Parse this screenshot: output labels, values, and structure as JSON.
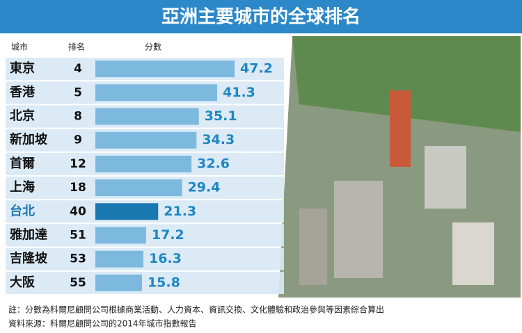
{
  "chart_data": {
    "type": "bar",
    "title": "亞洲主要城市的全球排名",
    "column_headers": [
      "城市",
      "排名",
      "分數"
    ],
    "categories": [
      "東京",
      "香港",
      "北京",
      "新加坡",
      "首爾",
      "上海",
      "台北",
      "雅加達",
      "吉隆坡",
      "大阪"
    ],
    "ranks": [
      4,
      5,
      8,
      9,
      12,
      18,
      40,
      51,
      53,
      55
    ],
    "values": [
      47.2,
      41.3,
      35.1,
      34.3,
      32.6,
      29.4,
      21.3,
      17.2,
      16.3,
      15.8
    ],
    "colors": [
      "#7db9de",
      "#7db9de",
      "#7db9de",
      "#7db9de",
      "#7db9de",
      "#7db9de",
      "#1a78b0",
      "#7db9de",
      "#7db9de",
      "#7db9de"
    ],
    "category_colors": [
      "#111",
      "#111",
      "#111",
      "#111",
      "#111",
      "#111",
      "#1a78b0",
      "#111",
      "#111",
      "#111"
    ],
    "value_color": "#1f86c4",
    "notes": [
      "註：分數為科爾尼顧問公司根據商業活動、人力資本、資訊交換、文化體驗和政治參與等因素綜合算出",
      "資料來源：科爾尼顧問公司的2014年城市指數報告"
    ]
  }
}
